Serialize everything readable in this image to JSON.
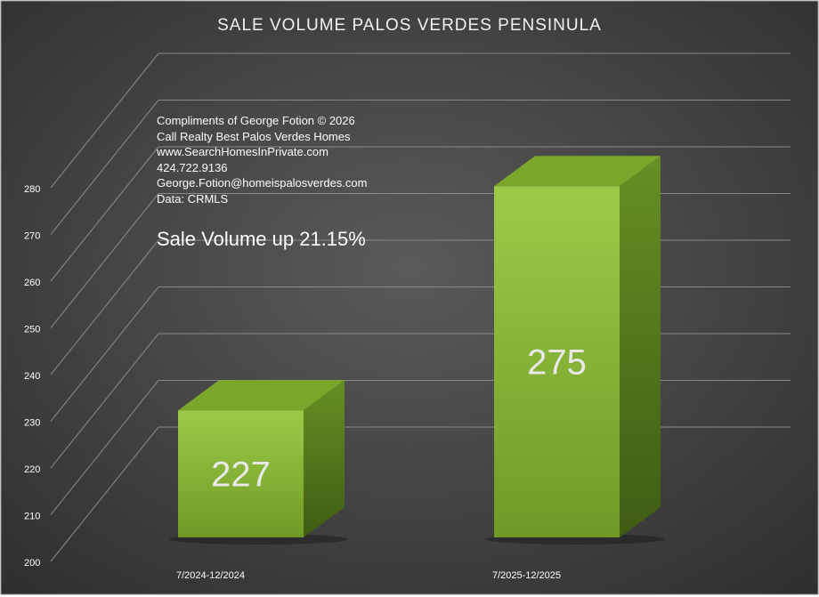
{
  "chart_data": {
    "type": "bar",
    "title": "SALE VOLUME PALOS VERDES PENSINULA",
    "categories": [
      "7/2024-12/2024",
      "7/2025-12/2025"
    ],
    "values": [
      227,
      275
    ],
    "data_labels": [
      "227",
      "275"
    ],
    "ylim": [
      200,
      280
    ],
    "yticks": [
      200,
      210,
      220,
      230,
      240,
      250,
      260,
      270,
      280
    ],
    "ytick_labels": [
      "200",
      "210",
      "220",
      "230",
      "240",
      "250",
      "260",
      "270",
      "280"
    ],
    "xlabel": "",
    "ylabel": "",
    "grid": true,
    "style": "3d-column",
    "colors": {
      "background": "#484848",
      "bar_front": "#8fc13c",
      "bar_side": "#5a7f1e",
      "bar_top": "#79a62b",
      "text": "#ffffff",
      "gridline": "#8a8a8a"
    }
  },
  "annotations": {
    "notes": [
      "Compliments of George Fotion © 2026",
      "Call Realty Best Palos Verdes Homes",
      "www.SearchHomesInPrivate.com",
      "424.722.9136",
      "George.Fotion@homeispalosverdes.com",
      "Data: CRMLS"
    ],
    "headline": "Sale Volume up 21.15%"
  }
}
